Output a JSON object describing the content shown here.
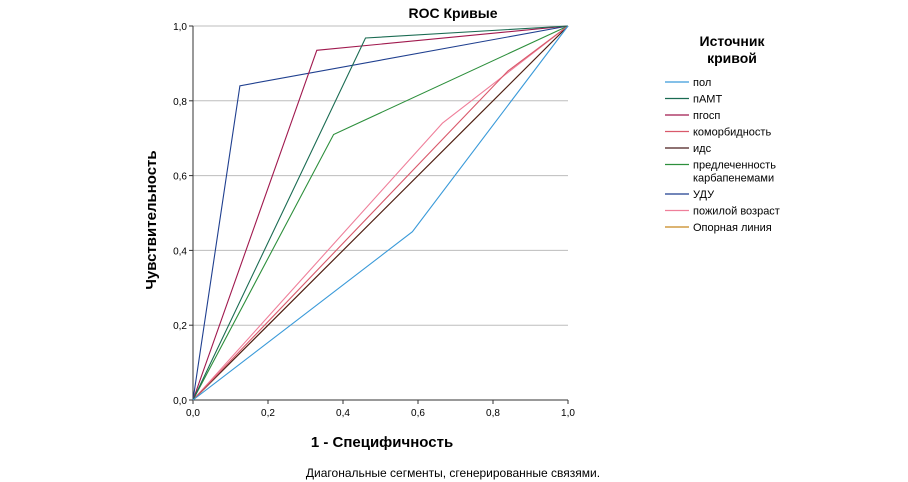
{
  "chart_data": {
    "type": "line",
    "title": "ROC Кривые",
    "xlabel": "1 - Специфичность",
    "ylabel": "Чувствительность",
    "xlim": [
      0,
      1
    ],
    "ylim": [
      0,
      1
    ],
    "x_ticks": [
      "0,0",
      "0,2",
      "0,4",
      "0,6",
      "0,8",
      "1,0"
    ],
    "y_ticks": [
      "0,0",
      "0,2",
      "0,4",
      "0,6",
      "0,8",
      "1,0"
    ],
    "grid": "horizontal",
    "legend_title": [
      "Источник",
      "кривой"
    ],
    "legend_position": "right",
    "footnote": "Диагональные сегменты, сгенерированные связями.",
    "series": [
      {
        "name": "пол",
        "color": "#3a9ad9",
        "points": [
          [
            0,
            0
          ],
          [
            0.585,
            0.45
          ],
          [
            1,
            1
          ]
        ]
      },
      {
        "name": "пАМТ",
        "color": "#1a6b52",
        "points": [
          [
            0,
            0
          ],
          [
            0.46,
            0.968
          ],
          [
            1,
            1
          ]
        ]
      },
      {
        "name": "пгосп",
        "color": "#a0194e",
        "points": [
          [
            0,
            0
          ],
          [
            0.33,
            0.935
          ],
          [
            1,
            1
          ]
        ]
      },
      {
        "name": "коморбидность",
        "color": "#d9596b",
        "points": [
          [
            0,
            0
          ],
          [
            0.84,
            0.88
          ],
          [
            1,
            1
          ]
        ]
      },
      {
        "name": "идс",
        "color": "#4a1e1e",
        "points": [
          [
            0,
            0
          ],
          [
            1,
            1
          ]
        ]
      },
      {
        "name": [
          "предлеченность",
          "карбапенемами"
        ],
        "color": "#2d8f3c",
        "points": [
          [
            0,
            0
          ],
          [
            0.375,
            0.71
          ],
          [
            1,
            1
          ]
        ]
      },
      {
        "name": "УДУ",
        "color": "#1f3f8f",
        "points": [
          [
            0,
            0
          ],
          [
            0.125,
            0.84
          ],
          [
            1,
            1
          ]
        ]
      },
      {
        "name": "пожилой возраст",
        "color": "#ef7f9a",
        "points": [
          [
            0,
            0
          ],
          [
            0.665,
            0.74
          ],
          [
            1,
            1
          ]
        ]
      },
      {
        "name": "Опорная линия",
        "color": "#c8861e",
        "points": [
          [
            0,
            0
          ],
          [
            1,
            1
          ]
        ]
      }
    ]
  }
}
